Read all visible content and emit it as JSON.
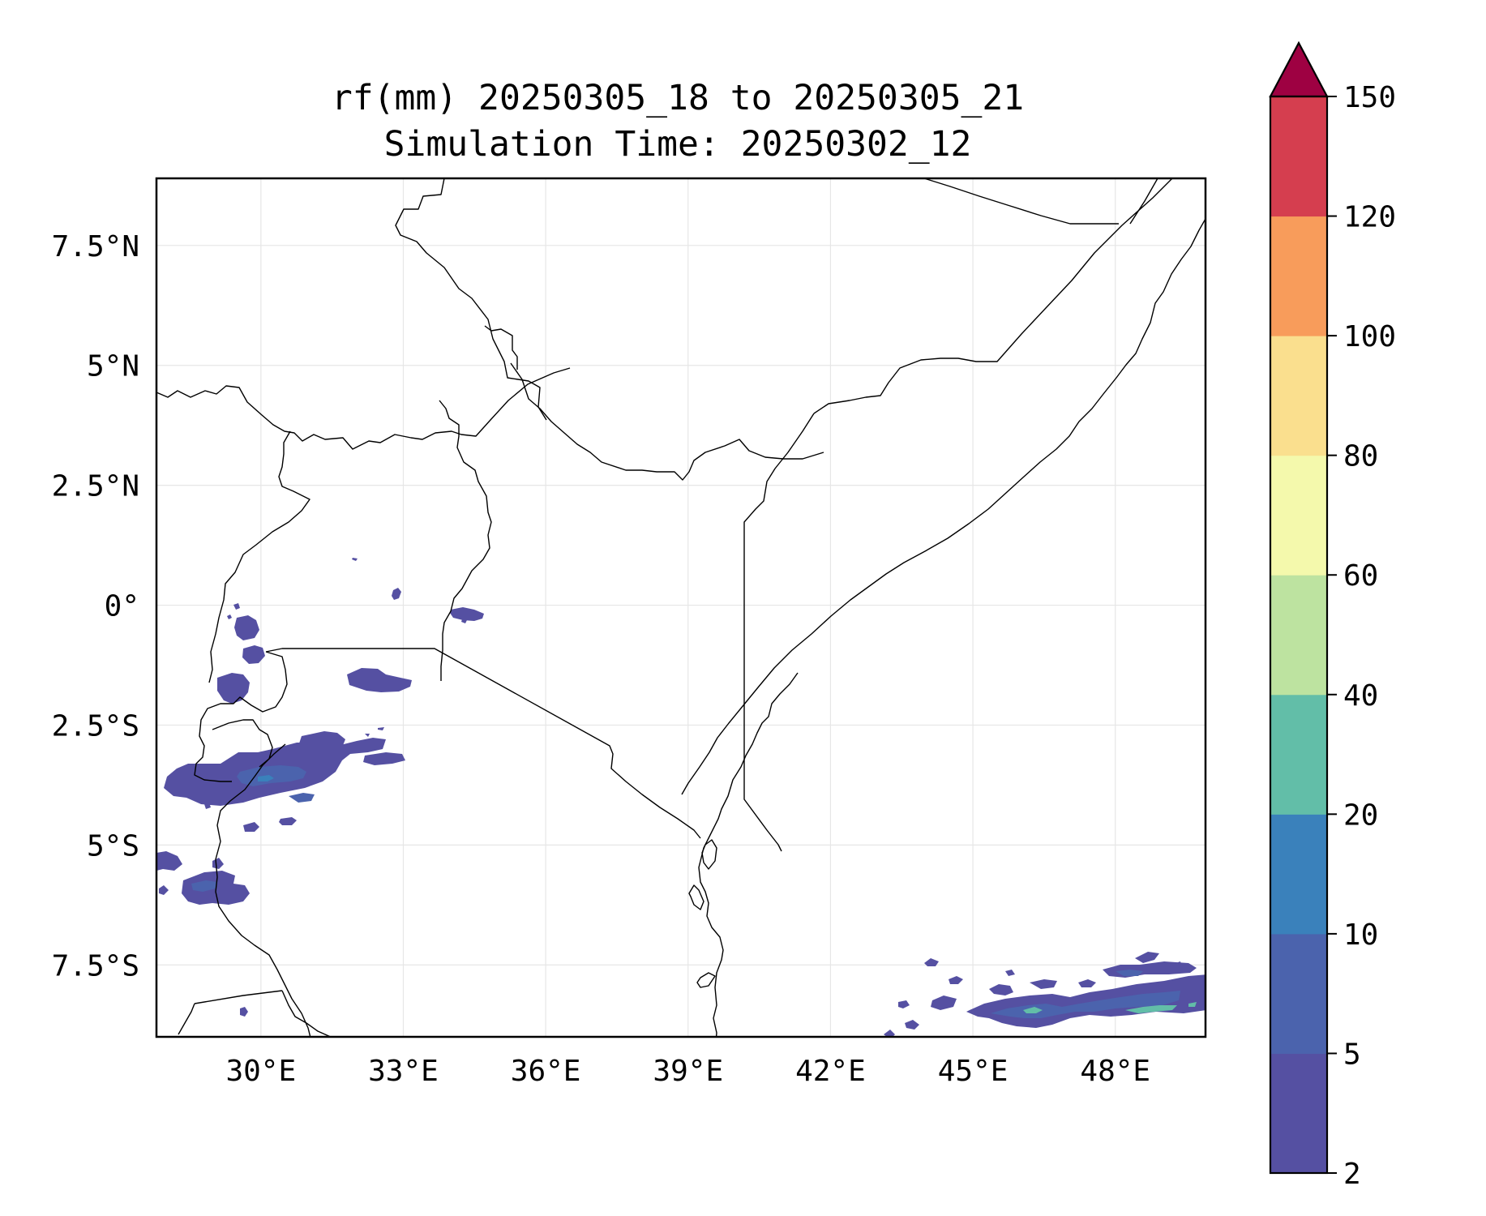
{
  "title": {
    "line1": "rf(mm) 20250305_18 to 20250305_21",
    "line2": "Simulation Time: 20250302_12"
  },
  "map": {
    "extent": {
      "lon": [
        27.8,
        49.9
      ],
      "lat": [
        -9.0,
        8.9
      ]
    },
    "lon_ticks": [
      {
        "value": 30,
        "label": "30°E"
      },
      {
        "value": 33,
        "label": "33°E"
      },
      {
        "value": 36,
        "label": "36°E"
      },
      {
        "value": 39,
        "label": "39°E"
      },
      {
        "value": 42,
        "label": "42°E"
      },
      {
        "value": 45,
        "label": "45°E"
      },
      {
        "value": 48,
        "label": "48°E"
      }
    ],
    "lat_ticks": [
      {
        "value": 7.5,
        "label": "7.5°N"
      },
      {
        "value": 5,
        "label": "5°N"
      },
      {
        "value": 2.5,
        "label": "2.5°N"
      },
      {
        "value": 0,
        "label": "0°"
      },
      {
        "value": -2.5,
        "label": "2.5°S"
      },
      {
        "value": -5,
        "label": "5°S"
      },
      {
        "value": -7.5,
        "label": "7.5°S"
      }
    ],
    "grid": true,
    "features": "country borders and coastlines of East Africa",
    "rainfall_areas": [
      {
        "name": "western-kenya-cell",
        "lon": 34.6,
        "lat": -0.1,
        "level": "2-5"
      },
      {
        "name": "lake-victoria-cell",
        "lon": 32.0,
        "lat": -1.55,
        "level": "2-5"
      },
      {
        "name": "rwanda-burundi-cluster",
        "lon": 30.0,
        "lat": -1.5,
        "level": "2-5"
      },
      {
        "name": "western-tanzania-band",
        "lon": 31.0,
        "lat": -3.7,
        "level": "2-10"
      },
      {
        "name": "lake-tanganyika-cell",
        "lon": 28.8,
        "lat": -6.0,
        "level": "2-5"
      },
      {
        "name": "indian-ocean-band",
        "lon": 47.0,
        "lat": -8.5,
        "level": "2-40"
      }
    ]
  },
  "colorbar": {
    "ticks": [
      "2",
      "5",
      "10",
      "20",
      "40",
      "60",
      "80",
      "100",
      "120",
      "150"
    ],
    "colors": [
      "#5550a2",
      "#4b63ad",
      "#3a81bb",
      "#62bea8",
      "#bde3a0",
      "#f4f9ac",
      "#fadf8e",
      "#f89c5b",
      "#d53e4f"
    ],
    "extend_color": "#9e0142",
    "extend": "max"
  }
}
